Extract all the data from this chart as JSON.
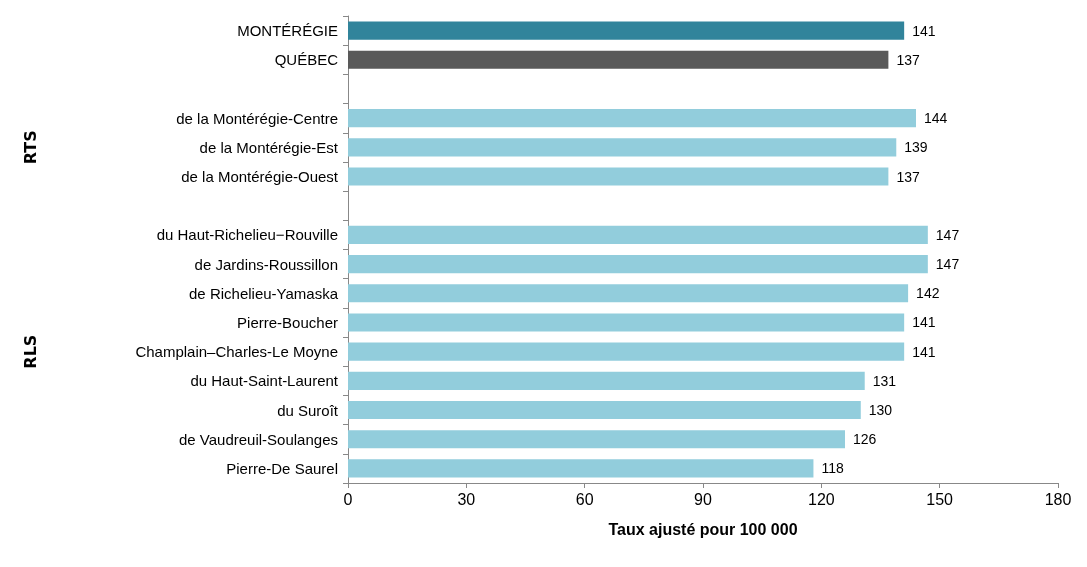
{
  "chart_data": {
    "type": "bar",
    "orientation": "horizontal",
    "xlabel": "Taux ajusté pour 100 000",
    "categories": [
      "MONTÉRÉGIE",
      "QUÉBEC",
      null,
      "de la Montérégie-Centre",
      "de la Montérégie-Est",
      "de la Montérégie-Ouest",
      null,
      "du Haut-Richelieu−Rouville",
      "de Jardins-Roussillon",
      "de Richelieu-Yamaska",
      "Pierre-Boucher",
      "Champlain–Charles-Le Moyne",
      "du Haut-Saint-Laurent",
      "du Suroît",
      "de Vaudreuil-Soulanges",
      "Pierre-De Saurel"
    ],
    "values": [
      141,
      137,
      null,
      144,
      139,
      137,
      null,
      147,
      147,
      142,
      141,
      141,
      131,
      130,
      126,
      118
    ],
    "colors": [
      "#31849b",
      "#595959",
      null,
      "#92cddc",
      "#92cddc",
      "#92cddc",
      null,
      "#92cddc",
      "#92cddc",
      "#92cddc",
      "#92cddc",
      "#92cddc",
      "#92cddc",
      "#92cddc",
      "#92cddc",
      "#92cddc"
    ],
    "xlim": [
      0,
      180
    ],
    "xticks": [
      0,
      30,
      60,
      90,
      120,
      150,
      180
    ],
    "grid": false,
    "data_labels": true,
    "annotations": [
      "RTS",
      "RLS"
    ]
  }
}
